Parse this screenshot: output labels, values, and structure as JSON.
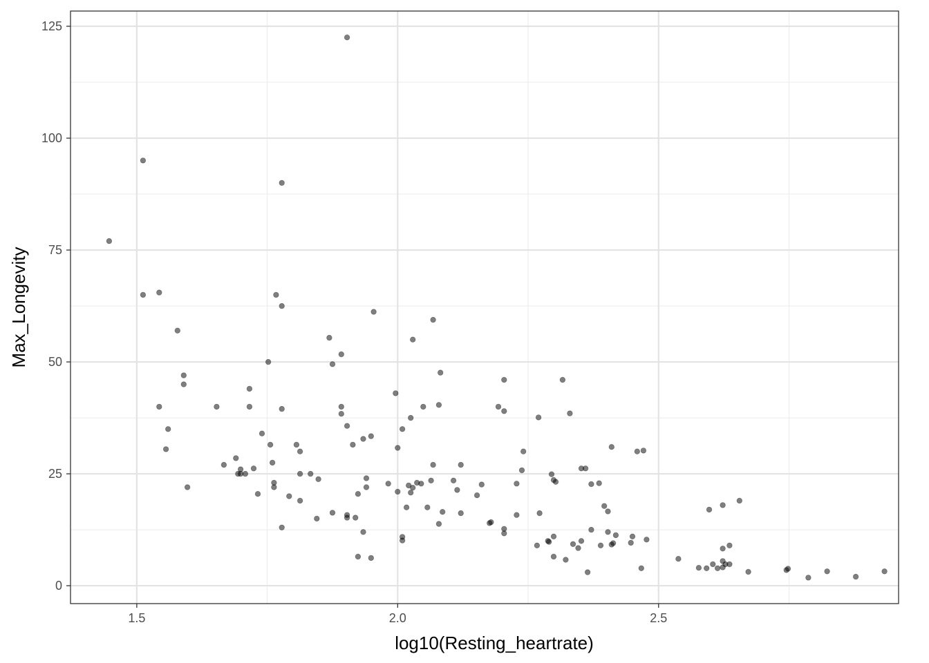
{
  "chart_data": {
    "type": "scatter",
    "title": "",
    "xlabel": "log10(Resting_heartrate)",
    "ylabel": "Max_Longevity",
    "xlim": [
      1.373,
      2.96
    ],
    "ylim": [
      -4.0,
      128.4
    ],
    "x_ticks": [
      1.5,
      2.0,
      2.5
    ],
    "x_tick_labels": [
      "1.5",
      "2.0",
      "2.5"
    ],
    "y_ticks": [
      0,
      25,
      50,
      75,
      100,
      125
    ],
    "y_tick_labels": [
      "0",
      "25",
      "50",
      "75",
      "100",
      "125"
    ],
    "grid": true,
    "point_color": "#000000",
    "point_opacity": 0.5,
    "points": [
      [
        1.447,
        77.0
      ],
      [
        1.512,
        95.0
      ],
      [
        1.512,
        65.0
      ],
      [
        1.543,
        65.5
      ],
      [
        1.543,
        40.0
      ],
      [
        1.556,
        30.5
      ],
      [
        1.56,
        35.0
      ],
      [
        1.578,
        57.0
      ],
      [
        1.59,
        47.0
      ],
      [
        1.59,
        45.0
      ],
      [
        1.597,
        22.0
      ],
      [
        1.653,
        40.0
      ],
      [
        1.667,
        27.0
      ],
      [
        1.69,
        28.5
      ],
      [
        1.694,
        25.0
      ],
      [
        1.699,
        26.0
      ],
      [
        1.699,
        25.0
      ],
      [
        1.708,
        25.0
      ],
      [
        1.716,
        44.0
      ],
      [
        1.716,
        40.0
      ],
      [
        1.724,
        26.2
      ],
      [
        1.732,
        20.5
      ],
      [
        1.74,
        34.0
      ],
      [
        1.752,
        50.0
      ],
      [
        1.756,
        31.5
      ],
      [
        1.76,
        27.5
      ],
      [
        1.763,
        23.0
      ],
      [
        1.763,
        22.0
      ],
      [
        1.767,
        65.0
      ],
      [
        1.778,
        90.0
      ],
      [
        1.778,
        62.5
      ],
      [
        1.778,
        39.5
      ],
      [
        1.778,
        13.0
      ],
      [
        1.792,
        20.0
      ],
      [
        1.806,
        31.5
      ],
      [
        1.813,
        30.0
      ],
      [
        1.813,
        25.0
      ],
      [
        1.813,
        19.0
      ],
      [
        1.833,
        25.0
      ],
      [
        1.845,
        15.0
      ],
      [
        1.848,
        23.8
      ],
      [
        1.869,
        55.4
      ],
      [
        1.875,
        49.5
      ],
      [
        1.875,
        16.3
      ],
      [
        1.892,
        51.7
      ],
      [
        1.892,
        40.0
      ],
      [
        1.892,
        38.4
      ],
      [
        1.903,
        122.5
      ],
      [
        1.903,
        35.7
      ],
      [
        1.903,
        15.8
      ],
      [
        1.903,
        15.2
      ],
      [
        1.914,
        31.5
      ],
      [
        1.919,
        15.2
      ],
      [
        1.924,
        20.5
      ],
      [
        1.924,
        6.5
      ],
      [
        1.934,
        32.8
      ],
      [
        1.934,
        12.0
      ],
      [
        1.94,
        24.0
      ],
      [
        1.94,
        22.0
      ],
      [
        1.949,
        33.4
      ],
      [
        1.949,
        6.2
      ],
      [
        1.954,
        61.2
      ],
      [
        1.982,
        22.8
      ],
      [
        1.996,
        43.0
      ],
      [
        2.0,
        30.8
      ],
      [
        2.0,
        21.0
      ],
      [
        2.009,
        35.0
      ],
      [
        2.009,
        10.9
      ],
      [
        2.009,
        10.1
      ],
      [
        2.017,
        17.5
      ],
      [
        2.021,
        22.4
      ],
      [
        2.025,
        37.5
      ],
      [
        2.025,
        20.8
      ],
      [
        2.029,
        55.0
      ],
      [
        2.029,
        21.9
      ],
      [
        2.037,
        23.0
      ],
      [
        2.045,
        22.8
      ],
      [
        2.049,
        40.0
      ],
      [
        2.057,
        17.5
      ],
      [
        2.064,
        23.5
      ],
      [
        2.068,
        59.4
      ],
      [
        2.068,
        27.0
      ],
      [
        2.079,
        40.4
      ],
      [
        2.079,
        13.8
      ],
      [
        2.082,
        47.6
      ],
      [
        2.086,
        16.5
      ],
      [
        2.107,
        23.5
      ],
      [
        2.114,
        21.4
      ],
      [
        2.121,
        27.0
      ],
      [
        2.121,
        16.2
      ],
      [
        2.152,
        20.2
      ],
      [
        2.161,
        22.6
      ],
      [
        2.176,
        14.0
      ],
      [
        2.179,
        14.2
      ],
      [
        2.193,
        40.0
      ],
      [
        2.204,
        46.0
      ],
      [
        2.204,
        39.0
      ],
      [
        2.204,
        12.7
      ],
      [
        2.204,
        11.7
      ],
      [
        2.228,
        22.8
      ],
      [
        2.228,
        15.8
      ],
      [
        2.238,
        25.8
      ],
      [
        2.241,
        30.0
      ],
      [
        2.267,
        9.0
      ],
      [
        2.27,
        37.6
      ],
      [
        2.272,
        16.2
      ],
      [
        2.288,
        10.0
      ],
      [
        2.29,
        9.8
      ],
      [
        2.295,
        24.9
      ],
      [
        2.299,
        23.6
      ],
      [
        2.299,
        11.0
      ],
      [
        2.299,
        6.5
      ],
      [
        2.303,
        23.2
      ],
      [
        2.316,
        46.0
      ],
      [
        2.322,
        5.8
      ],
      [
        2.33,
        38.5
      ],
      [
        2.336,
        9.3
      ],
      [
        2.346,
        8.4
      ],
      [
        2.352,
        26.2
      ],
      [
        2.352,
        10.0
      ],
      [
        2.36,
        26.2
      ],
      [
        2.364,
        3.0
      ],
      [
        2.371,
        22.7
      ],
      [
        2.371,
        12.5
      ],
      [
        2.386,
        22.9
      ],
      [
        2.389,
        9.0
      ],
      [
        2.396,
        17.8
      ],
      [
        2.403,
        16.6
      ],
      [
        2.403,
        12.0
      ],
      [
        2.41,
        31.0
      ],
      [
        2.41,
        9.2
      ],
      [
        2.413,
        9.5
      ],
      [
        2.418,
        11.3
      ],
      [
        2.447,
        9.6
      ],
      [
        2.45,
        11.0
      ],
      [
        2.459,
        30.0
      ],
      [
        2.467,
        3.9
      ],
      [
        2.471,
        30.2
      ],
      [
        2.477,
        10.3
      ],
      [
        2.538,
        6.0
      ],
      [
        2.577,
        4.0
      ],
      [
        2.592,
        3.9
      ],
      [
        2.597,
        17.0
      ],
      [
        2.604,
        4.8
      ],
      [
        2.613,
        3.9
      ],
      [
        2.623,
        18.0
      ],
      [
        2.623,
        8.3
      ],
      [
        2.623,
        5.5
      ],
      [
        2.623,
        4.1
      ],
      [
        2.628,
        4.8
      ],
      [
        2.636,
        4.8
      ],
      [
        2.636,
        9.0
      ],
      [
        2.655,
        19.0
      ],
      [
        2.672,
        3.1
      ],
      [
        2.745,
        3.5
      ],
      [
        2.748,
        3.8
      ],
      [
        2.787,
        1.8
      ],
      [
        2.823,
        3.2
      ],
      [
        2.878,
        2.0
      ],
      [
        2.933,
        3.2
      ]
    ]
  }
}
